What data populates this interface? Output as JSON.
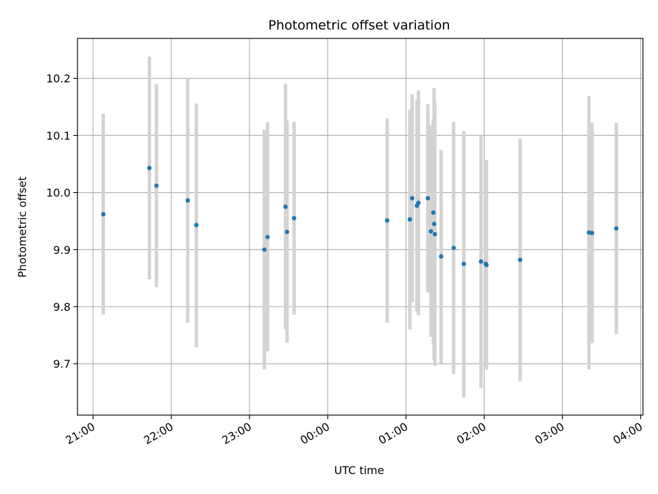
{
  "chart_data": {
    "type": "scatter",
    "title": "Photometric offset variation",
    "xlabel": "UTC time",
    "ylabel": "Photometric offset",
    "grid": true,
    "x_unit": "hours",
    "xlim": [
      20.8,
      28.03
    ],
    "ylim": [
      9.61,
      10.27
    ],
    "xticks": [
      {
        "value": 21,
        "label": "21:00"
      },
      {
        "value": 22,
        "label": "22:00"
      },
      {
        "value": 23,
        "label": "23:00"
      },
      {
        "value": 24,
        "label": "00:00"
      },
      {
        "value": 25,
        "label": "01:00"
      },
      {
        "value": 26,
        "label": "02:00"
      },
      {
        "value": 27,
        "label": "03:00"
      },
      {
        "value": 28,
        "label": "04:00"
      }
    ],
    "yticks": [
      {
        "value": 9.7,
        "label": "9.7"
      },
      {
        "value": 9.8,
        "label": "9.8"
      },
      {
        "value": 9.9,
        "label": "9.9"
      },
      {
        "value": 10.0,
        "label": "10.0"
      },
      {
        "value": 10.1,
        "label": "10.1"
      },
      {
        "value": 10.2,
        "label": "10.2"
      }
    ],
    "colors": {
      "point": "#1f77b4",
      "errorbar": "#d3d3d3",
      "grid": "#b0b0b0"
    },
    "points": [
      {
        "x": 21.13,
        "y": 9.962,
        "lo": 9.786,
        "hi": 10.138
      },
      {
        "x": 21.72,
        "y": 10.043,
        "lo": 9.848,
        "hi": 10.238
      },
      {
        "x": 21.81,
        "y": 10.012,
        "lo": 9.834,
        "hi": 10.19
      },
      {
        "x": 22.21,
        "y": 9.986,
        "lo": 9.772,
        "hi": 10.2
      },
      {
        "x": 22.32,
        "y": 9.943,
        "lo": 9.729,
        "hi": 10.156
      },
      {
        "x": 23.19,
        "y": 9.9,
        "lo": 9.69,
        "hi": 10.11
      },
      {
        "x": 23.23,
        "y": 9.922,
        "lo": 9.722,
        "hi": 10.123
      },
      {
        "x": 23.46,
        "y": 9.975,
        "lo": 9.76,
        "hi": 10.19
      },
      {
        "x": 23.48,
        "y": 9.931,
        "lo": 9.737,
        "hi": 10.126
      },
      {
        "x": 23.57,
        "y": 9.955,
        "lo": 9.786,
        "hi": 10.124
      },
      {
        "x": 24.76,
        "y": 9.951,
        "lo": 9.772,
        "hi": 10.13
      },
      {
        "x": 25.05,
        "y": 9.953,
        "lo": 9.76,
        "hi": 10.145
      },
      {
        "x": 25.08,
        "y": 9.99,
        "lo": 9.808,
        "hi": 10.172
      },
      {
        "x": 25.14,
        "y": 9.977,
        "lo": 9.791,
        "hi": 10.163
      },
      {
        "x": 25.16,
        "y": 9.982,
        "lo": 9.785,
        "hi": 10.179
      },
      {
        "x": 25.28,
        "y": 9.99,
        "lo": 9.825,
        "hi": 10.155
      },
      {
        "x": 25.32,
        "y": 9.932,
        "lo": 9.747,
        "hi": 10.118
      },
      {
        "x": 25.35,
        "y": 9.965,
        "lo": 9.732,
        "hi": 10.13
      },
      {
        "x": 25.36,
        "y": 9.945,
        "lo": 9.706,
        "hi": 10.183
      },
      {
        "x": 25.37,
        "y": 9.927,
        "lo": 9.696,
        "hi": 10.157
      },
      {
        "x": 25.45,
        "y": 9.888,
        "lo": 9.701,
        "hi": 10.075
      },
      {
        "x": 25.61,
        "y": 9.903,
        "lo": 9.682,
        "hi": 10.124
      },
      {
        "x": 25.74,
        "y": 9.875,
        "lo": 9.641,
        "hi": 10.108
      },
      {
        "x": 25.96,
        "y": 9.879,
        "lo": 9.658,
        "hi": 10.1
      },
      {
        "x": 26.02,
        "y": 9.875,
        "lo": 9.692,
        "hi": 10.056
      },
      {
        "x": 26.03,
        "y": 9.873,
        "lo": 9.69,
        "hi": 10.057
      },
      {
        "x": 26.46,
        "y": 9.882,
        "lo": 9.67,
        "hi": 10.094
      },
      {
        "x": 27.34,
        "y": 9.93,
        "lo": 9.69,
        "hi": 10.169
      },
      {
        "x": 27.38,
        "y": 9.929,
        "lo": 9.736,
        "hi": 10.122
      },
      {
        "x": 27.69,
        "y": 9.937,
        "lo": 9.752,
        "hi": 10.122
      }
    ]
  }
}
